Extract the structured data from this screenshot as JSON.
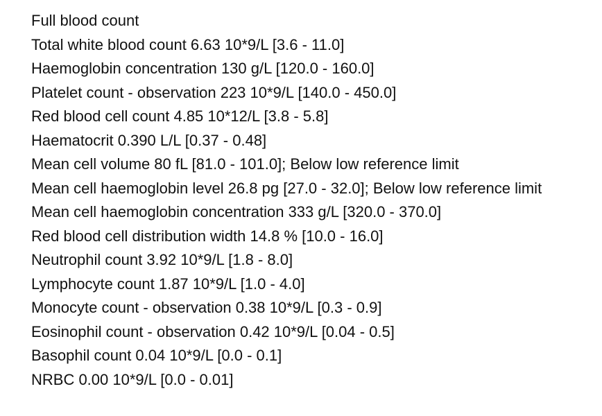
{
  "title": "Full blood count",
  "results": [
    "Total white blood count 6.63 10*9/L [3.6 - 11.0]",
    "Haemoglobin concentration 130 g/L [120.0 - 160.0]",
    "Platelet count - observation 223 10*9/L [140.0 - 450.0]",
    "Red blood cell count 4.85 10*12/L [3.8 - 5.8]",
    "Haematocrit 0.390 L/L [0.37 - 0.48]",
    "Mean cell volume 80 fL [81.0 - 101.0]; Below low reference limit",
    "Mean cell haemoglobin level 26.8 pg [27.0 - 32.0]; Below low reference limit",
    "Mean cell haemoglobin concentration 333 g/L [320.0 - 370.0]",
    "Red blood cell distribution width 14.8 % [10.0 - 16.0]",
    "Neutrophil count 3.92 10*9/L [1.8 - 8.0]",
    "Lymphocyte count 1.87 10*9/L [1.0 - 4.0]",
    "Monocyte count - observation 0.38 10*9/L [0.3 - 0.9]",
    "Eosinophil count - observation 0.42 10*9/L [0.04 - 0.5]",
    "Basophil count 0.04 10*9/L [0.0 - 0.1]",
    "NRBC 0.00 10*9/L [0.0 - 0.01]"
  ]
}
